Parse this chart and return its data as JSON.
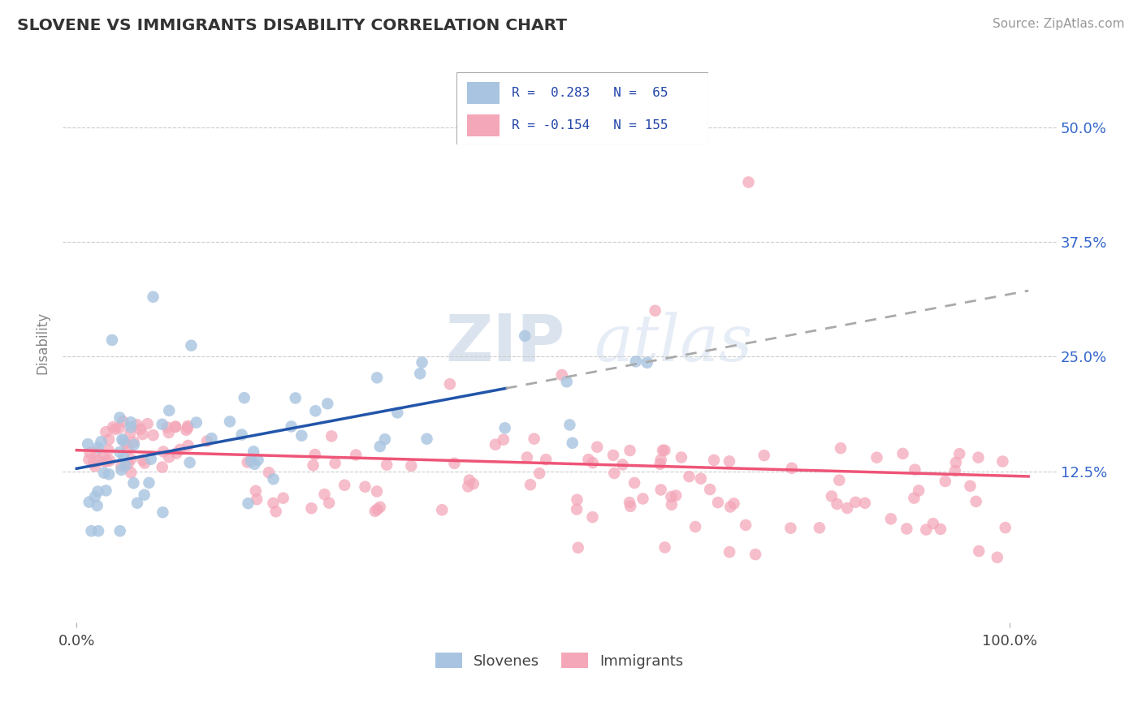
{
  "title": "SLOVENE VS IMMIGRANTS DISABILITY CORRELATION CHART",
  "source": "Source: ZipAtlas.com",
  "ylabel": "Disability",
  "yticks": [
    0.125,
    0.25,
    0.375,
    0.5
  ],
  "ytick_labels": [
    "12.5%",
    "25.0%",
    "37.5%",
    "50.0%"
  ],
  "blue_color": "#A8C4E0",
  "pink_color": "#F4A7B9",
  "blue_line_color": "#2255AA",
  "pink_line_color": "#EE5577",
  "dash_line_color": "#AAAAAA",
  "text_color": "#444444",
  "legend_blue_r": "R =  0.283",
  "legend_blue_n": "N =  65",
  "legend_pink_r": "R = -0.154",
  "legend_pink_n": "N = 155",
  "watermark_zip_color": "#C8D8EC",
  "watermark_atlas_color": "#C8D8EC",
  "slovene_seed": 101,
  "immigrant_seed": 202
}
